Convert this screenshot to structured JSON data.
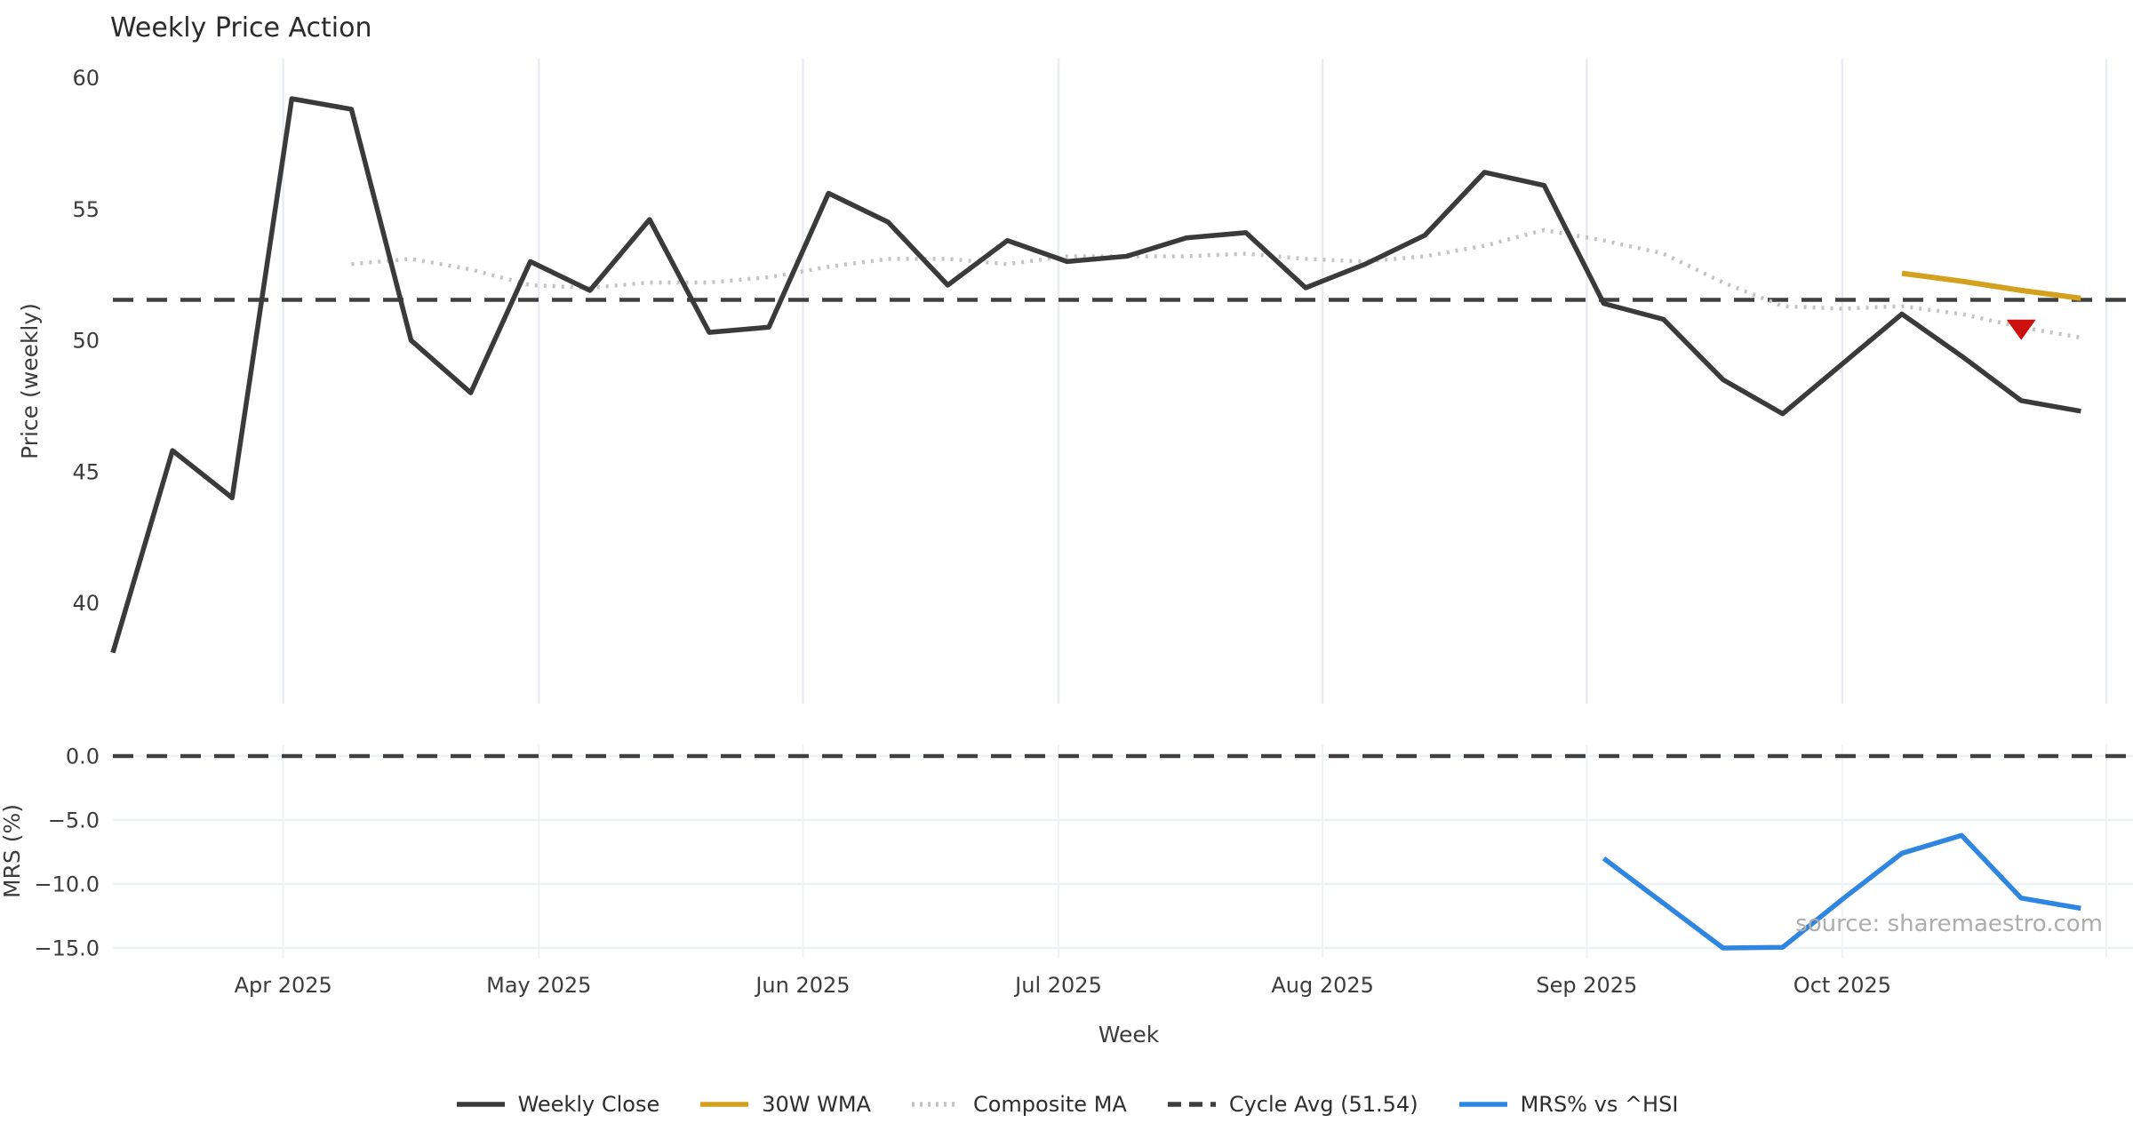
{
  "chart_data": {
    "type": "line",
    "title": "Weekly Price Action",
    "xlabel": "Week",
    "watermark": "source: sharemaestro.com",
    "x_frequency": "weekly",
    "weeks_start": "2025-03-12",
    "n_weeks": 34,
    "month_ticks": [
      {
        "date": "2025-04-01",
        "label": "Apr 2025"
      },
      {
        "date": "2025-05-01",
        "label": "May 2025"
      },
      {
        "date": "2025-06-01",
        "label": "Jun 2025"
      },
      {
        "date": "2025-07-01",
        "label": "Jul 2025"
      },
      {
        "date": "2025-08-01",
        "label": "Aug 2025"
      },
      {
        "date": "2025-09-01",
        "label": "Sep 2025"
      },
      {
        "date": "2025-10-01",
        "label": "Oct 2025"
      },
      {
        "date": "2025-11-01",
        "label": ""
      }
    ],
    "panels": [
      {
        "ylabel": "Price (weekly)",
        "ylim": [
          36.2,
          60.8
        ],
        "grid": "vertical-months",
        "yticks": [
          {
            "value": 60,
            "label": "60"
          },
          {
            "value": 55,
            "label": "55"
          },
          {
            "value": 50,
            "label": "50"
          },
          {
            "value": 45,
            "label": "45"
          },
          {
            "value": 40,
            "label": "40"
          }
        ],
        "series": [
          {
            "name": "Composite MA",
            "color": "#c4c4c4",
            "style": "dotted",
            "width": 4.5,
            "start_week": 4,
            "values": [
              52.9,
              53.1,
              52.7,
              52.1,
              52.0,
              52.2,
              52.2,
              52.4,
              52.8,
              53.1,
              53.1,
              52.9,
              53.2,
              53.2,
              53.2,
              53.3,
              53.1,
              53.0,
              53.2,
              53.6,
              54.2,
              53.8,
              53.3,
              52.2,
              51.3,
              51.2,
              51.3,
              51.0,
              50.5,
              50.1
            ]
          },
          {
            "name": "30W WMA",
            "color": "#d4a11e",
            "style": "solid",
            "width": 6,
            "start_week": 30,
            "values": [
              52.55,
              52.25,
              51.9,
              51.6
            ]
          },
          {
            "name": "Weekly Close",
            "color": "#3a3a3a",
            "style": "solid",
            "width": 5.5,
            "start_week": 0,
            "values": [
              38.1,
              45.8,
              44.0,
              59.2,
              58.8,
              50.0,
              48.0,
              53.0,
              51.9,
              54.6,
              50.3,
              50.5,
              55.6,
              54.5,
              52.1,
              53.8,
              53.0,
              53.2,
              53.9,
              54.1,
              52.0,
              52.9,
              54.0,
              56.4,
              55.9,
              51.4,
              50.8,
              48.5,
              47.2,
              49.1,
              51.0,
              49.4,
              47.7,
              47.3
            ]
          },
          {
            "name": "Cycle Avg (51.54)",
            "color": "#3f3f3f",
            "style": "dashed",
            "width": 4.5,
            "hline": 51.54
          }
        ],
        "marker": {
          "shape": "triangle-down",
          "color": "#cc1010",
          "week": 32,
          "value": 50.45,
          "on_series": "Composite MA"
        }
      },
      {
        "ylabel": "MRS (%)",
        "ylim": [
          1.0,
          -15.9
        ],
        "grid": "horizontal-and-vertical",
        "yticks": [
          {
            "value": 0,
            "label": "0.0"
          },
          {
            "value": -5,
            "label": "−5.0"
          },
          {
            "value": -10,
            "label": "−10.0"
          },
          {
            "value": -15,
            "label": "−15.0"
          }
        ],
        "series": [
          {
            "name": "MRS% vs ^HSI",
            "color": "#2e86e0",
            "style": "solid",
            "width": 5.5,
            "start_week": 25,
            "values": [
              -8.0,
              -11.5,
              -15.0,
              -14.95,
              -11.2,
              -7.6,
              -6.2,
              -11.1,
              -11.9
            ]
          },
          {
            "name": "Zero line",
            "color": "#3f3f3f",
            "style": "dashed",
            "width": 4.5,
            "hline": 0.0
          }
        ]
      }
    ],
    "legend": [
      {
        "label": "Weekly Close",
        "color": "#3a3a3a",
        "style": "solid"
      },
      {
        "label": "30W WMA",
        "color": "#d4a11e",
        "style": "solid"
      },
      {
        "label": "Composite MA",
        "color": "#c4c4c4",
        "style": "dotted"
      },
      {
        "label": "Cycle Avg (51.54)",
        "color": "#3f3f3f",
        "style": "dashed"
      },
      {
        "label": "MRS% vs ^HSI",
        "color": "#2e86e0",
        "style": "solid"
      }
    ],
    "grid_colors": {
      "vertical": "#e9edf2",
      "horizontal": "#eef1f5"
    }
  }
}
